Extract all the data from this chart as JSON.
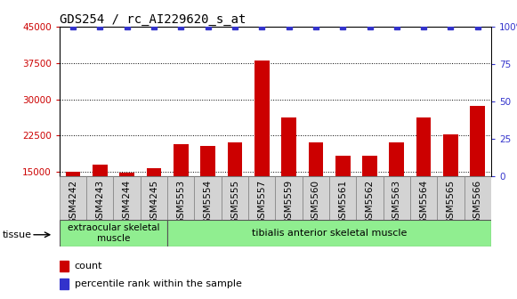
{
  "title": "GDS254 / rc_AI229620_s_at",
  "categories": [
    "GSM4242",
    "GSM4243",
    "GSM4244",
    "GSM4245",
    "GSM5553",
    "GSM5554",
    "GSM5555",
    "GSM5557",
    "GSM5559",
    "GSM5560",
    "GSM5561",
    "GSM5562",
    "GSM5563",
    "GSM5564",
    "GSM5565",
    "GSM5566"
  ],
  "counts": [
    14900,
    16400,
    14800,
    15700,
    20700,
    20400,
    21100,
    38000,
    26200,
    21100,
    18300,
    18300,
    21000,
    26200,
    22800,
    28700
  ],
  "bar_color": "#cc0000",
  "dot_color": "#3333cc",
  "ylim_left": [
    14000,
    45000
  ],
  "ylim_right": [
    0,
    100
  ],
  "yticks_left": [
    15000,
    22500,
    30000,
    37500,
    45000
  ],
  "yticks_right": [
    0,
    25,
    50,
    75,
    100
  ],
  "group1_label": "extraocular skeletal\nmuscle",
  "group2_label": "tibialis anterior skeletal muscle",
  "group1_count": 4,
  "group2_count": 12,
  "tissue_label": "tissue",
  "legend_count_label": "count",
  "legend_percentile_label": "percentile rank within the sample",
  "bg_color": "#ffffff",
  "group1_color": "#90ee90",
  "group2_color": "#90ee90",
  "tick_label_color_left": "#cc0000",
  "tick_label_color_right": "#3333cc",
  "title_fontsize": 10,
  "tick_fontsize": 7.5,
  "bar_width": 0.55,
  "xtick_bg": "#d3d3d3",
  "dot_size": 4,
  "bar_bottom": 14000
}
